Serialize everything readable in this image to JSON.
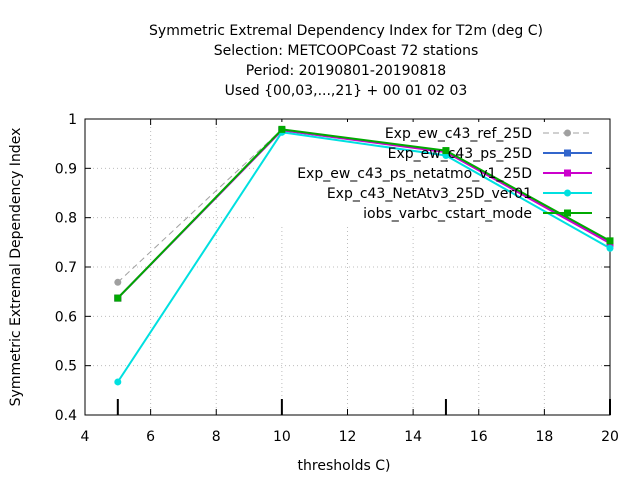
{
  "chart_data": {
    "type": "line",
    "title_lines": [
      "Symmetric Extremal Dependency Index  for T2m (deg C)",
      "Selection: METCOOPCoast     72 stations",
      "Period: 20190801-20190818",
      "Used {00,03,...,21} + 00 01 02 03"
    ],
    "xlabel": "thresholds C)",
    "ylabel": "Symmetric Extremal Dependency Index",
    "xlim": [
      4,
      20
    ],
    "ylim": [
      0.4,
      1.0
    ],
    "x_ticks": [
      4,
      6,
      8,
      10,
      12,
      14,
      16,
      18,
      20
    ],
    "x_tick_labels": [
      "4",
      "6",
      "8",
      "10",
      "12",
      "14",
      "16",
      "18",
      "20"
    ],
    "y_ticks": [
      0.4,
      0.5,
      0.6,
      0.7,
      0.8,
      0.9,
      1.0
    ],
    "y_tick_labels": [
      "0.4",
      "0.5",
      "0.6",
      "0.7",
      "0.8",
      "0.9",
      "1"
    ],
    "grid": true,
    "legend_position": "top-right",
    "threshold_markers": [
      5,
      10,
      15,
      20
    ],
    "series": [
      {
        "name": "Exp_ew_c43_ref_25D",
        "color": "#a0a0a0",
        "dashed": true,
        "marker": "circle",
        "x": [
          5,
          10,
          15,
          20
        ],
        "values": [
          0.669,
          0.979,
          0.934,
          0.752
        ]
      },
      {
        "name": "Exp_ew_c43_ps_25D",
        "color": "#3366cc",
        "dashed": false,
        "marker": "square",
        "x": [
          5,
          10,
          15,
          20
        ],
        "values": [
          0.637,
          0.977,
          0.934,
          0.75
        ]
      },
      {
        "name": "Exp_ew_c43_ps_netatmo_v1_25D",
        "color": "#cc00cc",
        "dashed": false,
        "marker": "square",
        "x": [
          5,
          10,
          15,
          20
        ],
        "values": [
          0.637,
          0.977,
          0.933,
          0.748
        ]
      },
      {
        "name": "Exp_c43_NetAtv3_25D_ver01",
        "color": "#00e0e0",
        "dashed": false,
        "marker": "circle",
        "x": [
          5,
          10,
          15,
          20
        ],
        "values": [
          0.467,
          0.973,
          0.926,
          0.738
        ]
      },
      {
        "name": "iobs_varbc_cstart_mode",
        "color": "#00aa00",
        "dashed": false,
        "marker": "square",
        "x": [
          5,
          10,
          15,
          20
        ],
        "values": [
          0.637,
          0.979,
          0.936,
          0.753
        ]
      }
    ]
  }
}
